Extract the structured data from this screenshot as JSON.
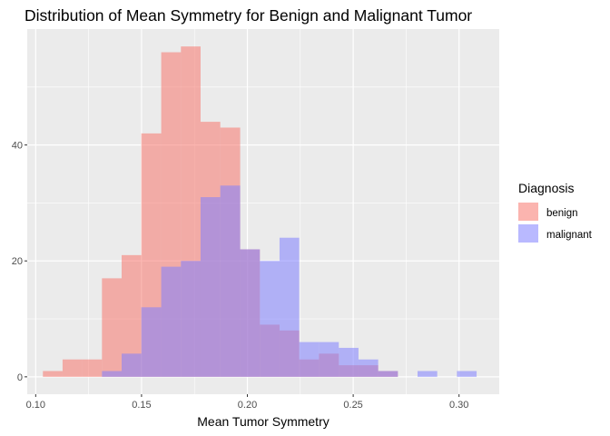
{
  "chart_data": {
    "type": "histogram",
    "title": "Distribution of Mean Symmetry for Benign and Malignant Tumor",
    "xlabel": "Mean Tumor Symmetry",
    "ylabel": "",
    "xlim": [
      0.096,
      0.319
    ],
    "ylim": [
      -3,
      60
    ],
    "x_ticks": [
      0.1,
      0.15,
      0.2,
      0.25,
      0.3
    ],
    "x_tick_labels": [
      "0.10",
      "0.15",
      "0.20",
      "0.25",
      "0.30"
    ],
    "y_ticks": [
      0,
      20,
      40
    ],
    "y_tick_labels": [
      "0",
      "20",
      "40"
    ],
    "grid": true,
    "bin_width": 0.00932,
    "legend": {
      "title": "Diagnosis",
      "position": "right"
    },
    "series": [
      {
        "name": "benign",
        "color": "#F8766D",
        "bins": [
          {
            "x0": 0.1034,
            "x1": 0.1127,
            "count": 1
          },
          {
            "x0": 0.1127,
            "x1": 0.122,
            "count": 3
          },
          {
            "x0": 0.122,
            "x1": 0.1313,
            "count": 3
          },
          {
            "x0": 0.1313,
            "x1": 0.1406,
            "count": 17
          },
          {
            "x0": 0.1406,
            "x1": 0.1499,
            "count": 21
          },
          {
            "x0": 0.1499,
            "x1": 0.1593,
            "count": 42
          },
          {
            "x0": 0.1593,
            "x1": 0.1686,
            "count": 56
          },
          {
            "x0": 0.1686,
            "x1": 0.1779,
            "count": 57
          },
          {
            "x0": 0.1779,
            "x1": 0.1872,
            "count": 44
          },
          {
            "x0": 0.1872,
            "x1": 0.1966,
            "count": 43
          },
          {
            "x0": 0.1966,
            "x1": 0.2059,
            "count": 22
          },
          {
            "x0": 0.2059,
            "x1": 0.2152,
            "count": 9
          },
          {
            "x0": 0.2152,
            "x1": 0.2245,
            "count": 8
          },
          {
            "x0": 0.2245,
            "x1": 0.2338,
            "count": 3
          },
          {
            "x0": 0.2338,
            "x1": 0.2432,
            "count": 4
          },
          {
            "x0": 0.2432,
            "x1": 0.2525,
            "count": 2
          },
          {
            "x0": 0.2525,
            "x1": 0.2618,
            "count": 2
          },
          {
            "x0": 0.2618,
            "x1": 0.2711,
            "count": 1
          }
        ]
      },
      {
        "name": "malignant",
        "color": "#8080FF",
        "bins": [
          {
            "x0": 0.1313,
            "x1": 0.1406,
            "count": 1
          },
          {
            "x0": 0.1406,
            "x1": 0.1499,
            "count": 4
          },
          {
            "x0": 0.1499,
            "x1": 0.1593,
            "count": 12
          },
          {
            "x0": 0.1593,
            "x1": 0.1686,
            "count": 19
          },
          {
            "x0": 0.1686,
            "x1": 0.1779,
            "count": 20
          },
          {
            "x0": 0.1779,
            "x1": 0.1872,
            "count": 31
          },
          {
            "x0": 0.1872,
            "x1": 0.1966,
            "count": 33
          },
          {
            "x0": 0.1966,
            "x1": 0.2059,
            "count": 22
          },
          {
            "x0": 0.2059,
            "x1": 0.2152,
            "count": 20
          },
          {
            "x0": 0.2152,
            "x1": 0.2245,
            "count": 24
          },
          {
            "x0": 0.2245,
            "x1": 0.2338,
            "count": 6
          },
          {
            "x0": 0.2338,
            "x1": 0.2432,
            "count": 6
          },
          {
            "x0": 0.2432,
            "x1": 0.2525,
            "count": 5
          },
          {
            "x0": 0.2525,
            "x1": 0.2618,
            "count": 3
          },
          {
            "x0": 0.2618,
            "x1": 0.2711,
            "count": 1
          },
          {
            "x0": 0.2711,
            "x1": 0.2804,
            "count": 0
          },
          {
            "x0": 0.2804,
            "x1": 0.2897,
            "count": 1
          },
          {
            "x0": 0.2897,
            "x1": 0.299,
            "count": 0
          },
          {
            "x0": 0.299,
            "x1": 0.3083,
            "count": 1
          }
        ]
      }
    ]
  }
}
